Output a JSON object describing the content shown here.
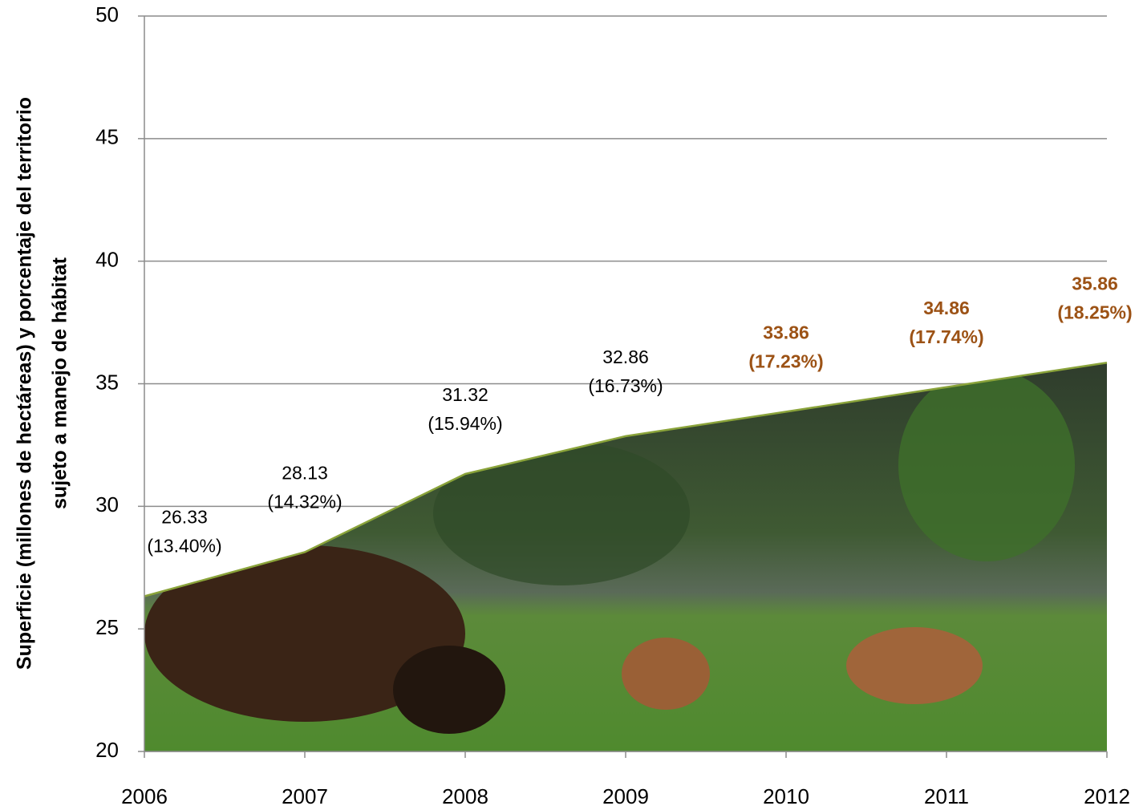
{
  "chart_data": {
    "type": "area",
    "ylabel": [
      "Superficie (millones de hectáreas) y porcentaje del territorio",
      "sujeto a manejo de hábitat"
    ],
    "x": [
      2006,
      2007,
      2008,
      2009,
      2010,
      2011,
      2012
    ],
    "values": [
      26.33,
      28.13,
      31.32,
      32.86,
      33.86,
      34.86,
      35.86
    ],
    "percent_labels": [
      "(13.40%)",
      "(14.32%)",
      "(15.94%)",
      "(16.73%)",
      "(17.23%)",
      "(17.74%)",
      "(18.25%)"
    ],
    "label_colors": [
      "#000000",
      "#000000",
      "#000000",
      "#000000",
      "#9c5215",
      "#9c5215",
      "#9c5215"
    ],
    "line_color": "#8aa33a",
    "xlim": [
      2006,
      2012
    ],
    "xticks": [
      2006,
      2007,
      2008,
      2009,
      2010,
      2011,
      2012
    ],
    "ylim": [
      20,
      50
    ],
    "yticks": [
      20,
      25,
      30,
      35,
      40,
      45,
      50
    ],
    "grid": true
  }
}
